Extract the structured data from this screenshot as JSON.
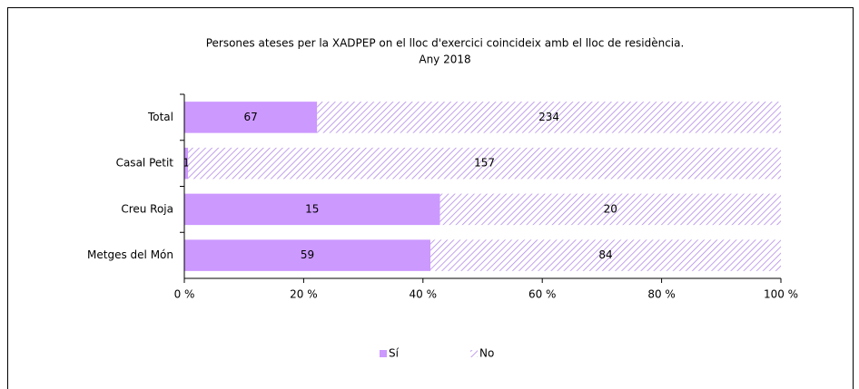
{
  "chart_data": {
    "type": "bar",
    "orientation": "horizontal",
    "stacking": "percent",
    "title": "Persones ateses per la XADPEP on el lloc d'exercici coincideix amb el lloc de residència.",
    "subtitle": "Any 2018",
    "categories": [
      "Total",
      "Casal Petit",
      "Creu Roja",
      "Metges del Món"
    ],
    "series": [
      {
        "name": "Sí",
        "color": "#cc99ff",
        "pattern": "solid",
        "values": [
          67,
          1,
          15,
          59
        ]
      },
      {
        "name": "No",
        "color": "#b38ae6",
        "pattern": "hatch",
        "values": [
          234,
          157,
          20,
          84
        ]
      }
    ],
    "xlim": [
      0,
      100
    ],
    "xticks": [
      {
        "value": 0,
        "label": "0 %"
      },
      {
        "value": 20,
        "label": "20 %"
      },
      {
        "value": 40,
        "label": "40 %"
      },
      {
        "value": 60,
        "label": "60 %"
      },
      {
        "value": 80,
        "label": "80 %"
      },
      {
        "value": 100,
        "label": "100 %"
      }
    ],
    "legend": "bottom"
  }
}
